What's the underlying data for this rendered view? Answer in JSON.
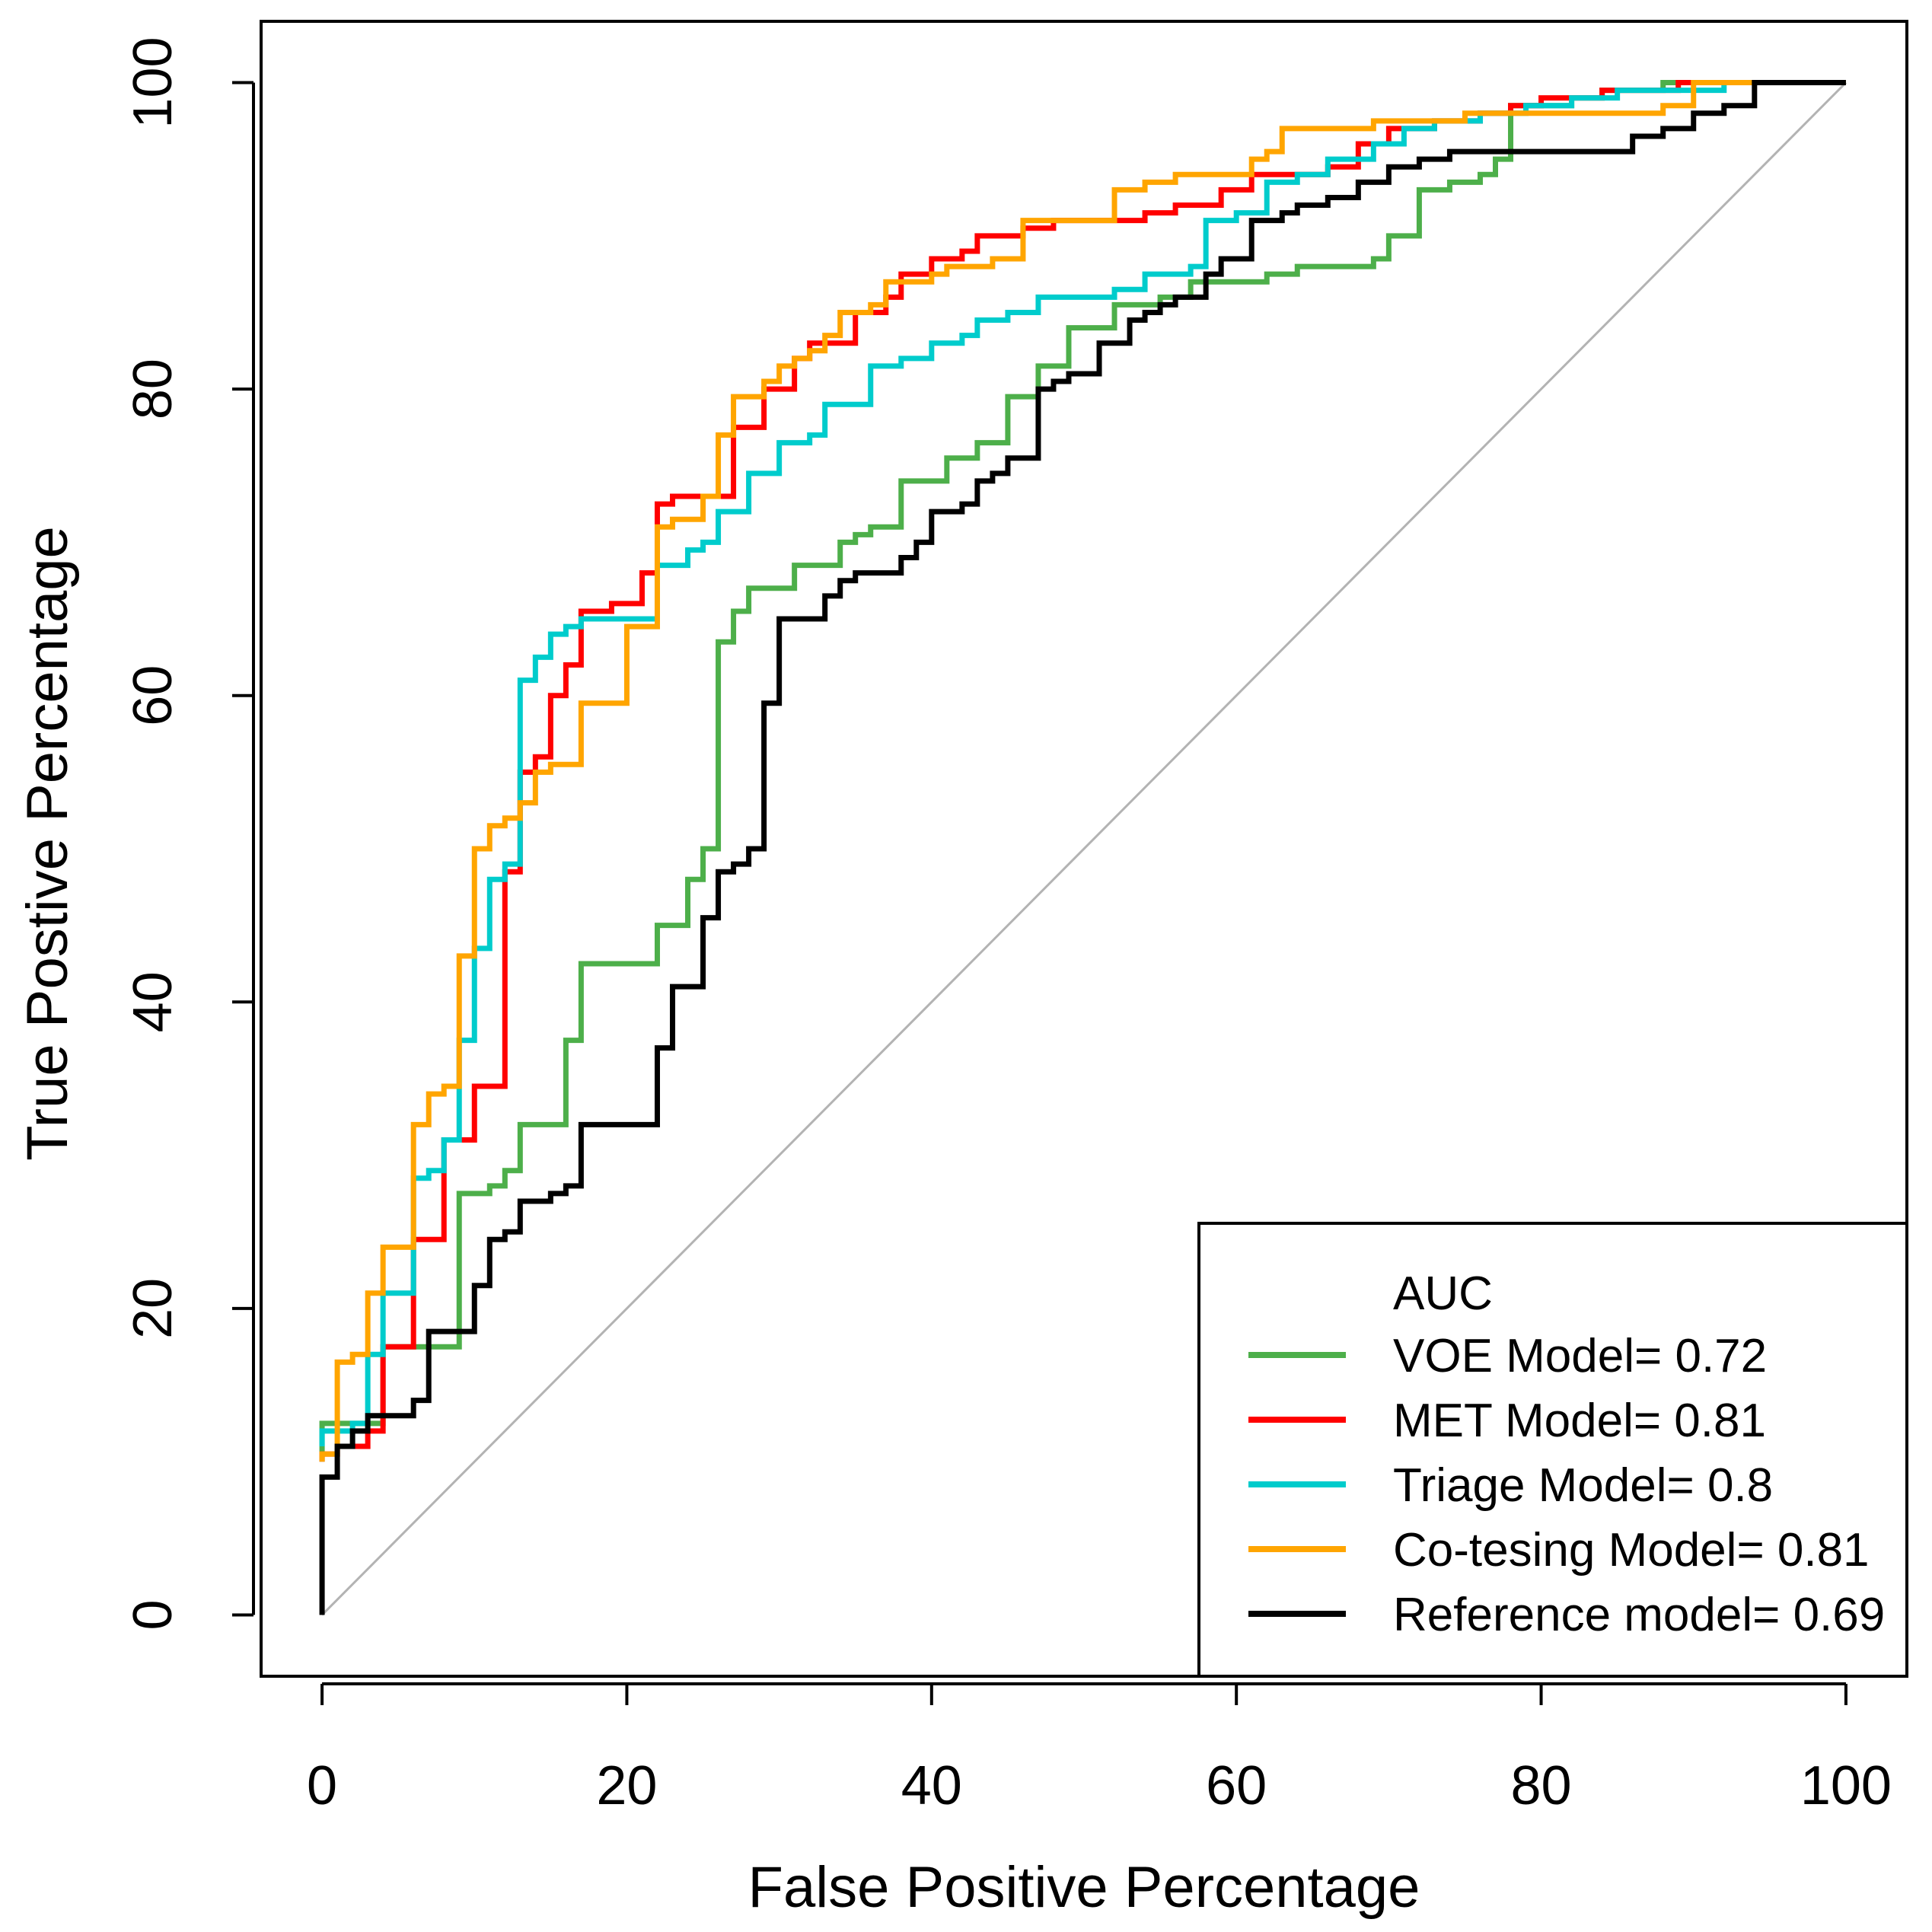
{
  "chart_data": {
    "type": "line",
    "xlabel": "False Positive Percentage",
    "ylabel": "True Postive Percentage",
    "xlim": [
      -4,
      104
    ],
    "ylim": [
      -4,
      104
    ],
    "xticks": [
      0,
      20,
      40,
      60,
      80,
      100
    ],
    "yticks": [
      0,
      20,
      40,
      60,
      80,
      100
    ],
    "grid": false,
    "legend": {
      "title": "AUC",
      "placement": "bottom-right"
    },
    "reference_line": {
      "x": [
        0,
        100
      ],
      "y": [
        0,
        100
      ],
      "color": "#b3b3b3"
    },
    "series": [
      {
        "name": "VOE Model= 0.72",
        "color": "#4daf4a",
        "x": [
          0,
          0,
          1,
          4,
          4,
          9,
          9,
          11,
          12,
          13,
          16,
          16,
          17,
          17,
          22,
          22,
          23,
          24,
          25,
          25,
          26,
          26,
          27,
          27,
          28,
          28,
          29,
          31,
          32,
          34,
          35,
          36,
          38,
          38,
          40,
          41,
          43,
          45,
          45,
          47,
          47,
          49,
          49,
          51,
          52,
          53,
          55,
          57,
          59,
          62,
          64,
          67,
          69,
          70,
          72,
          72,
          74,
          76,
          77,
          78,
          78,
          80,
          82,
          84,
          86,
          88,
          90,
          92,
          94,
          100
        ],
        "y": [
          10,
          12.5,
          12.5,
          13,
          17.5,
          17.5,
          27.5,
          28,
          29,
          32,
          32,
          37.5,
          37.5,
          42.5,
          42.5,
          45,
          45,
          48,
          49,
          50,
          50,
          63.5,
          63.5,
          65.5,
          66,
          67,
          67,
          68.5,
          68.5,
          70,
          70.5,
          71,
          71,
          74,
          74,
          75.5,
          76.5,
          76.5,
          79.5,
          79.5,
          81.5,
          81.5,
          84,
          84,
          85.5,
          85.5,
          86,
          87,
          87,
          87.5,
          88,
          88,
          88.5,
          90,
          91,
          93,
          93.5,
          94,
          95,
          95,
          98.5,
          98.5,
          99,
          99.5,
          99.5,
          100,
          100,
          100,
          100,
          100
        ]
      },
      {
        "name": "MET Model= 0.81",
        "color": "#ff0000",
        "x": [
          0,
          0,
          1,
          3,
          4,
          4,
          6,
          6,
          7,
          8,
          8,
          10,
          10,
          11,
          12,
          12,
          13,
          13,
          14,
          15,
          15,
          16,
          16,
          17,
          17,
          19,
          21,
          21,
          22,
          22,
          23,
          25,
          27,
          27,
          29,
          29,
          31,
          31,
          32,
          32,
          35,
          35,
          37,
          37,
          38,
          38,
          40,
          40,
          42,
          43,
          43,
          44,
          46,
          48,
          48,
          51,
          54,
          56,
          57,
          59,
          59,
          61,
          61,
          63,
          66,
          68,
          68,
          70,
          70,
          73,
          76,
          78,
          80,
          84,
          86,
          89,
          92,
          94,
          100
        ],
        "y": [
          10,
          10.5,
          11,
          12,
          14,
          17.5,
          17.5,
          24.5,
          24.5,
          29,
          31,
          31,
          34.5,
          34.5,
          48,
          48.5,
          51,
          55,
          56,
          59.5,
          60,
          60,
          62,
          62,
          65.5,
          66,
          66,
          68,
          68,
          72.5,
          73,
          73,
          75,
          77.5,
          78.5,
          80,
          80,
          82,
          82.5,
          83,
          83,
          85,
          85,
          86,
          86,
          87.5,
          88.5,
          88.5,
          89,
          89,
          90,
          90,
          90.5,
          90.5,
          91,
          91,
          91.5,
          92,
          92,
          92.5,
          93,
          93,
          94,
          94,
          94.5,
          95,
          96,
          96,
          97,
          97.5,
          98,
          98.5,
          99,
          99.5,
          99.5,
          100,
          100,
          100,
          100
        ]
      },
      {
        "name": "Triage Model= 0.8",
        "color": "#00cccc",
        "x": [
          0,
          0,
          1,
          2,
          3,
          4,
          4,
          5,
          6,
          6,
          7,
          8,
          9,
          9,
          10,
          10,
          11,
          11,
          12,
          13,
          13,
          14,
          14,
          15,
          15,
          16,
          17,
          19,
          22,
          22,
          23,
          24,
          24,
          25,
          26,
          28,
          28,
          30,
          30,
          32,
          33,
          33,
          35,
          36,
          38,
          40,
          40,
          42,
          43,
          43,
          45,
          47,
          47,
          49,
          52,
          54,
          57,
          58,
          58,
          60,
          62,
          62,
          64,
          66,
          66,
          69,
          69,
          71,
          73,
          76,
          79,
          82,
          85,
          88,
          92,
          94,
          100
        ],
        "y": [
          11,
          12,
          12,
          12.5,
          17,
          17.5,
          21,
          21,
          28,
          28.5,
          29,
          31,
          32,
          37.5,
          37.5,
          43.5,
          43.5,
          48,
          49,
          50,
          61,
          61.5,
          62.5,
          63,
          64,
          64.5,
          65,
          65,
          65.5,
          68.5,
          68.5,
          69,
          69.5,
          70,
          72,
          74,
          74.5,
          76,
          76.5,
          77,
          78,
          79,
          79,
          81.5,
          82,
          82,
          83,
          83.5,
          84,
          84.5,
          85,
          85,
          86,
          86,
          86.5,
          87.5,
          88,
          88,
          91,
          91.5,
          92,
          93.5,
          94,
          94.5,
          95,
          95,
          96,
          97,
          97.5,
          98,
          98.5,
          99,
          99.5,
          99.5,
          100,
          100,
          100
        ]
      },
      {
        "name": "Co-tesing Model= 0.81",
        "color": "#ffa500",
        "x": [
          0,
          0,
          1,
          1,
          2,
          3,
          3,
          4,
          4,
          5,
          6,
          6,
          7,
          7,
          8,
          9,
          9,
          10,
          10,
          11,
          11,
          12,
          13,
          14,
          15,
          16,
          17,
          17,
          19,
          20,
          20,
          21,
          22,
          22,
          23,
          25,
          26,
          26,
          27,
          27,
          28,
          28,
          29,
          30,
          31,
          32,
          33,
          34,
          36,
          37,
          37,
          40,
          40,
          41,
          43,
          44,
          46,
          46,
          49,
          52,
          52,
          54,
          56,
          58,
          61,
          61,
          62,
          63,
          66,
          69,
          72,
          75,
          78,
          81,
          84,
          86,
          88,
          90,
          93,
          94,
          100
        ],
        "y": [
          10,
          10.5,
          11,
          16.5,
          17,
          17.5,
          21,
          21.5,
          24,
          24,
          28.5,
          32,
          33,
          34,
          34.5,
          34.5,
          43,
          43,
          50,
          50,
          51.5,
          52,
          53,
          55,
          55.5,
          55.5,
          59.5,
          59.5,
          59.5,
          64.5,
          64.5,
          64.5,
          71,
          71,
          71.5,
          73,
          73.5,
          77,
          77.5,
          79.5,
          79.5,
          79.5,
          80.5,
          81.5,
          82,
          82.5,
          83.5,
          85,
          85.5,
          86,
          87,
          87,
          87.5,
          88,
          88,
          88.5,
          88.5,
          91,
          91,
          91,
          93,
          93.5,
          94,
          94,
          94,
          95,
          95.5,
          97,
          97,
          97.5,
          97.5,
          98,
          98,
          98,
          98,
          98,
          98.5,
          100,
          100,
          100,
          100
        ]
      },
      {
        "name": "Reference model= 0.69",
        "color": "#000000",
        "x": [
          0,
          0,
          1,
          1,
          2,
          3,
          5,
          6,
          6,
          7,
          7,
          8,
          10,
          10,
          11,
          11,
          12,
          13,
          13,
          15,
          15,
          16,
          17,
          17,
          19,
          19,
          22,
          22,
          23,
          23,
          24,
          25,
          25,
          26,
          26,
          27,
          28,
          29,
          29,
          30,
          30,
          31,
          31,
          33,
          33,
          34,
          34,
          35,
          37,
          38,
          38,
          39,
          40,
          40,
          42,
          43,
          44,
          45,
          47,
          47,
          48,
          49,
          50,
          51,
          51,
          53,
          54,
          55,
          56,
          58,
          59,
          60,
          61,
          61,
          63,
          64,
          66,
          68,
          68,
          70,
          72,
          74,
          76,
          78,
          80,
          82,
          85,
          86,
          88,
          90,
          90,
          92,
          94,
          94,
          100
        ],
        "y": [
          0,
          9,
          9,
          11,
          12,
          13,
          13,
          14,
          14,
          18.5,
          18.5,
          18.5,
          18.5,
          21.5,
          21.5,
          24.5,
          25,
          26.5,
          27,
          27.5,
          27.5,
          28,
          28,
          32,
          32,
          32,
          32,
          37,
          37,
          41,
          41,
          45,
          45.5,
          48,
          48.5,
          49,
          50,
          50,
          59.5,
          59.5,
          65,
          65,
          65,
          65,
          66.5,
          66.5,
          67.5,
          68,
          68,
          68.5,
          69,
          70,
          71,
          72,
          72.5,
          74,
          74.5,
          75.5,
          75.5,
          80,
          80.5,
          81,
          81,
          83,
          83,
          84.5,
          85,
          85.5,
          86,
          87.5,
          88.5,
          88.5,
          90.5,
          91,
          91.5,
          92,
          92.5,
          92.5,
          93.5,
          94.5,
          95,
          95.5,
          95.5,
          95.5,
          95.5,
          95.5,
          95.5,
          96.5,
          97,
          97,
          98,
          98.5,
          98.5,
          100,
          100
        ]
      }
    ]
  }
}
